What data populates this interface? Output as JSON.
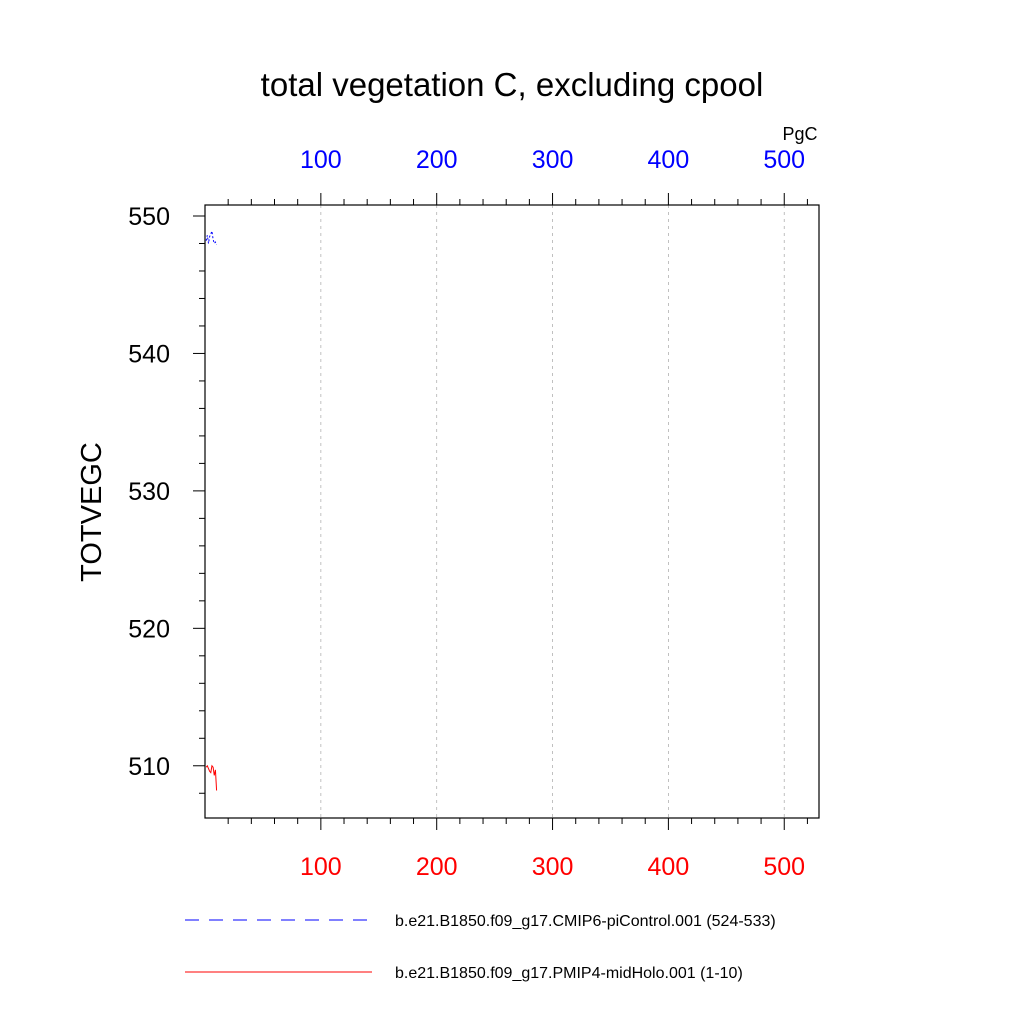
{
  "chart_data": {
    "type": "line",
    "title": "total vegetation C, excluding cpool",
    "ylabel": "TOTVEGC",
    "units": "PgC",
    "xlim": [
      0,
      530
    ],
    "ylim": [
      506.2,
      550.8
    ],
    "x_ticks": [
      100,
      200,
      300,
      400,
      500
    ],
    "y_ticks": [
      510,
      520,
      530,
      540,
      550
    ],
    "x_ticks_top": [
      "100",
      "200",
      "300",
      "400",
      "500"
    ],
    "x_ticks_bottom": [
      "100",
      "200",
      "300",
      "400",
      "500"
    ],
    "y_tick_labels": [
      "510",
      "520",
      "530",
      "540",
      "550"
    ],
    "grid": "vertical dashed",
    "legend_position": "bottom",
    "series": [
      {
        "name": "b.e21.B1850.f09_g17.CMIP6-piControl.001 (524-533)",
        "color": "#0000ff",
        "style": "dashed",
        "axis": "top",
        "x": [
          1,
          2,
          3,
          4,
          5,
          6,
          7,
          8,
          9,
          10
        ],
        "y": [
          548.2,
          548.6,
          548.0,
          548.5,
          548.7,
          548.9,
          548.3,
          548.0,
          548.1,
          547.9
        ]
      },
      {
        "name": "b.e21.B1850.f09_g17.PMIP4-midHolo.001 (1-10)",
        "color": "#ff0000",
        "style": "solid",
        "axis": "bottom",
        "x": [
          1,
          2,
          3,
          4,
          5,
          6,
          7,
          8,
          9,
          10
        ],
        "y": [
          509.9,
          510.0,
          509.8,
          509.6,
          509.5,
          510.0,
          509.9,
          509.3,
          509.7,
          508.2
        ]
      }
    ]
  }
}
